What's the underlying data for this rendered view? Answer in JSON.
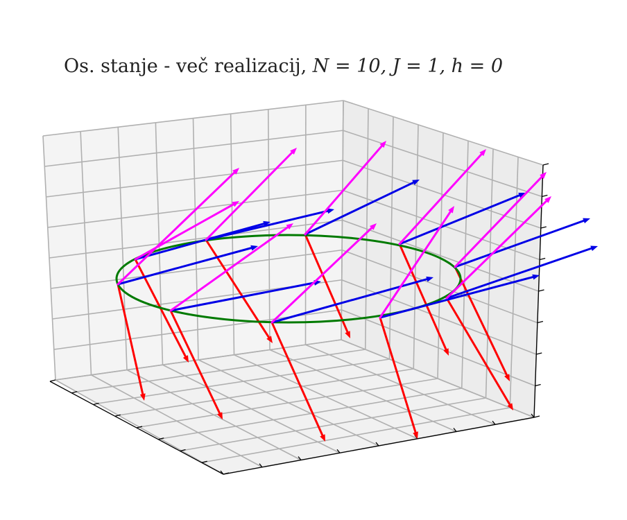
{
  "chart_data": {
    "type": "3d-quiver",
    "title_prefix": "Os. stanje - več realizacij, ",
    "title_math": "N = 10, J = 1, h = 0",
    "params": {
      "N": 10,
      "J": 1,
      "h": 0
    },
    "grid": true,
    "ring": {
      "color": "#007a00"
    },
    "colors": {
      "red": "#ff0000",
      "blue": "#0000e6",
      "magenta": "#ff00ff"
    },
    "num_sites": 10
  }
}
